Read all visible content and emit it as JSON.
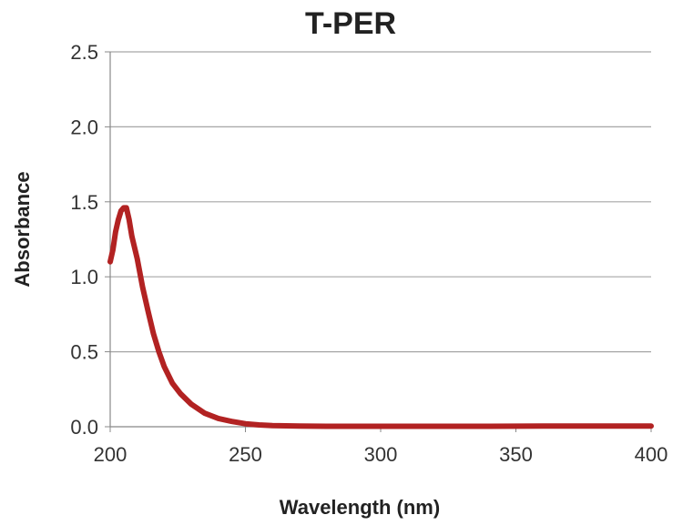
{
  "chart_data": {
    "type": "line",
    "title": "T-PER",
    "xlabel": "Wavelength (nm)",
    "ylabel": "Absorbance",
    "xlim": [
      200,
      400
    ],
    "ylim": [
      0,
      2.5
    ],
    "x_ticks": [
      "200",
      "250",
      "300",
      "350",
      "400"
    ],
    "y_ticks": [
      "0.0",
      "0.5",
      "1.0",
      "1.5",
      "2.0",
      "2.5"
    ],
    "grid": "horizontal",
    "legend": "none",
    "series": [
      {
        "color": "#B22222",
        "x": [
          200,
          201,
          202,
          203,
          204,
          205,
          206,
          207,
          208,
          210,
          212,
          214,
          216,
          218,
          220,
          223,
          226,
          230,
          235,
          240,
          245,
          250,
          255,
          260,
          270,
          280,
          300,
          320,
          340,
          360,
          380,
          400
        ],
        "y": [
          1.1,
          1.18,
          1.3,
          1.38,
          1.44,
          1.46,
          1.46,
          1.38,
          1.27,
          1.12,
          0.93,
          0.77,
          0.62,
          0.5,
          0.4,
          0.29,
          0.22,
          0.15,
          0.09,
          0.055,
          0.035,
          0.02,
          0.012,
          0.007,
          0.004,
          0.003,
          0.003,
          0.003,
          0.003,
          0.004,
          0.004,
          0.005
        ]
      }
    ]
  }
}
